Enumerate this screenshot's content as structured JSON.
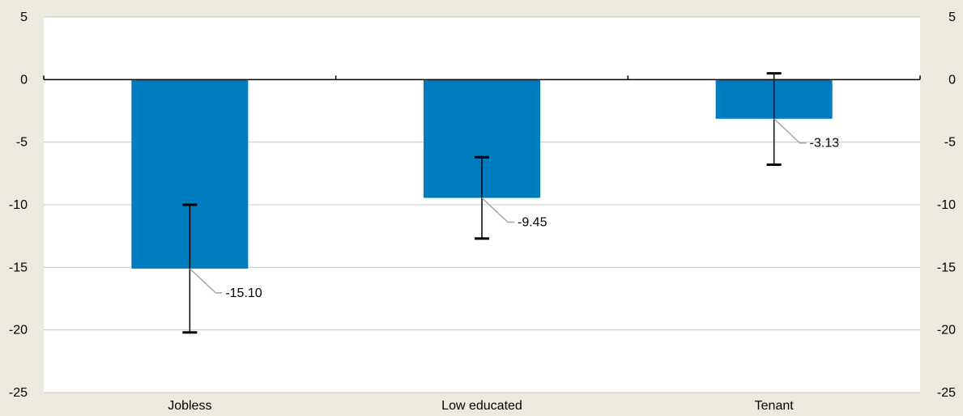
{
  "chart_data": {
    "type": "bar",
    "title": "",
    "xlabel": "",
    "ylabel": "",
    "categories": [
      "Jobless",
      "Low educated",
      "Tenant"
    ],
    "values": [
      -15.1,
      -9.45,
      -3.13
    ],
    "data_labels": [
      "-15.10",
      "-9.45",
      "-3.13"
    ],
    "error_bars": [
      {
        "low": -20.2,
        "high": -10.0
      },
      {
        "low": -12.7,
        "high": -6.2
      },
      {
        "low": -6.8,
        "high": 0.5
      }
    ],
    "ylim": [
      -25,
      5
    ],
    "y_ticks": [
      5,
      0,
      -5,
      -10,
      -15,
      -20,
      -25
    ],
    "y_tick_labels": [
      "5",
      "0",
      "-5",
      "-10",
      "-15",
      "-20",
      "-25"
    ],
    "secondary_y_axis": true,
    "grid": true,
    "bar_color": "#007cc1",
    "background_color": "#ece9df",
    "plot_background_color": "#ffffff",
    "gridline_color": "#c8c8c8",
    "leader_line_color": "#a6a6a6"
  }
}
